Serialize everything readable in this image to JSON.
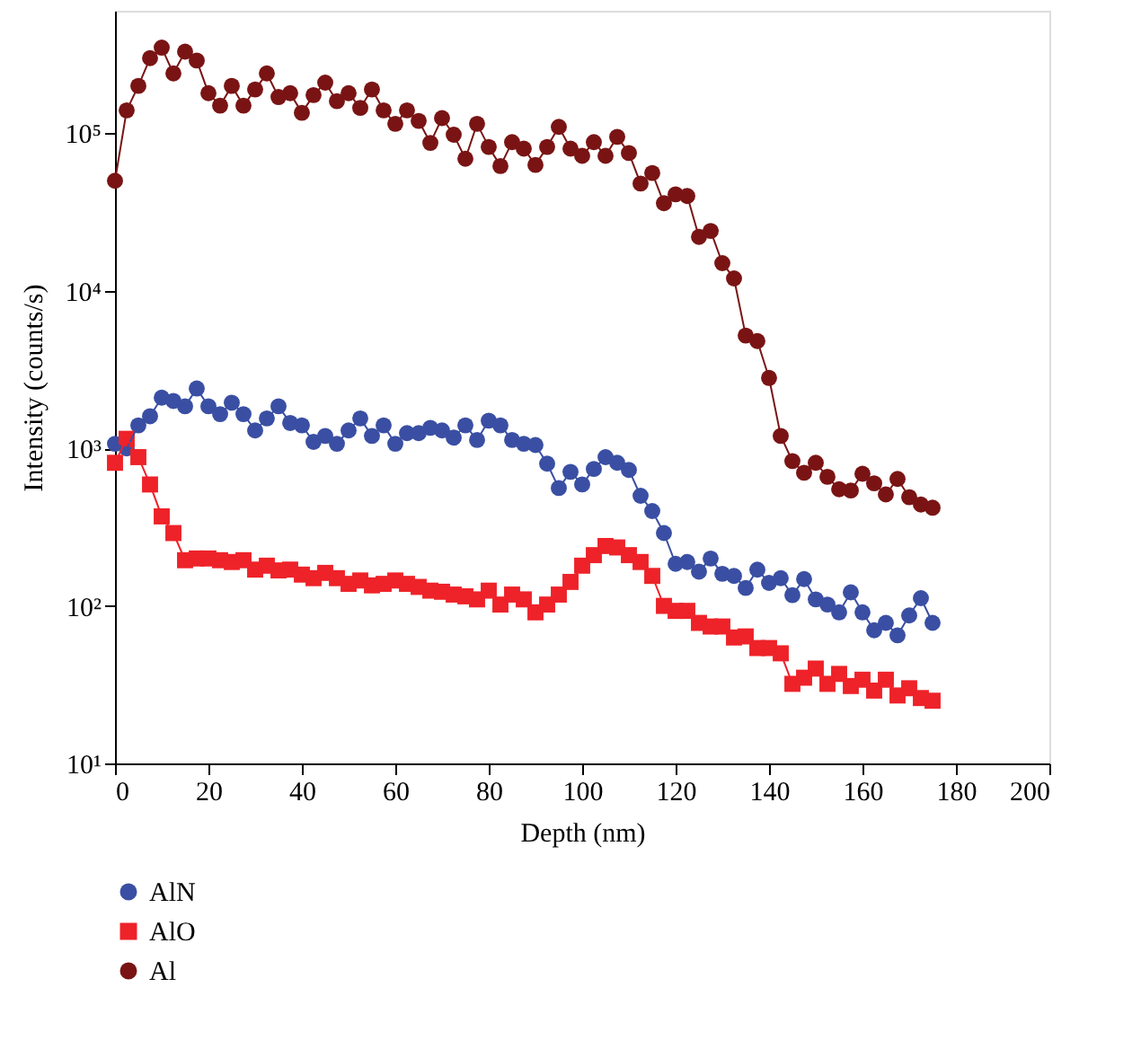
{
  "chart_data": {
    "type": "line",
    "xlabel": "Depth (nm)",
    "ylabel": "Intensity (counts/s)",
    "x": [
      0,
      2.5,
      5,
      7.5,
      10,
      12.5,
      15,
      17.5,
      20,
      22.5,
      25,
      27.5,
      30,
      32.5,
      35,
      37.5,
      40,
      42.5,
      45,
      47.5,
      50,
      52.5,
      55,
      57.5,
      60,
      62.5,
      65,
      67.5,
      70,
      72.5,
      75,
      77.5,
      80,
      82.5,
      85,
      87.5,
      90,
      92.5,
      95,
      97.5,
      100,
      102.5,
      105,
      107.5,
      110,
      112.5,
      115,
      117.5,
      120,
      122.5,
      125,
      127.5,
      130,
      132.5,
      135,
      137.5,
      140,
      142.5,
      145,
      147.5,
      150,
      152.5,
      155,
      157.5,
      160,
      162.5,
      165,
      167.5,
      170,
      172.5,
      175
    ],
    "series": [
      {
        "name": "AlN",
        "color": "#3a4fa3",
        "marker": "circle",
        "values": [
          1070,
          1000,
          1400,
          1600,
          2100,
          2000,
          1850,
          2400,
          1850,
          1650,
          1950,
          1650,
          1300,
          1550,
          1850,
          1450,
          1400,
          1100,
          1200,
          1070,
          1300,
          1550,
          1200,
          1400,
          1070,
          1250,
          1250,
          1350,
          1300,
          1170,
          1400,
          1130,
          1500,
          1400,
          1130,
          1070,
          1050,
          800,
          560,
          710,
          590,
          740,
          880,
          810,
          730,
          500,
          400,
          290,
          185,
          190,
          165,
          200,
          160,
          155,
          130,
          170,
          140,
          150,
          117,
          148,
          110,
          102,
          91,
          122,
          91,
          70,
          78,
          65,
          87,
          112,
          78
        ]
      },
      {
        "name": "AlO",
        "color": "#ee2229",
        "marker": "square",
        "values": [
          810,
          1150,
          880,
          590,
          370,
          290,
          195,
          200,
          200,
          195,
          190,
          195,
          170,
          180,
          168,
          170,
          158,
          150,
          162,
          150,
          138,
          145,
          135,
          138,
          145,
          138,
          132,
          125,
          123,
          118,
          115,
          110,
          125,
          102,
          118,
          110,
          91,
          102,
          118,
          142,
          180,
          210,
          240,
          235,
          210,
          190,
          155,
          100,
          93,
          93,
          78,
          74,
          74,
          63,
          64,
          54,
          54,
          50,
          32,
          35,
          40,
          32,
          37,
          31,
          34,
          29,
          34,
          27,
          30,
          26,
          25
        ]
      },
      {
        "name": "Al",
        "color": "#7a1414",
        "marker": "circle",
        "values": [
          50000,
          140000,
          200000,
          300000,
          350000,
          240000,
          330000,
          290000,
          180000,
          150000,
          200000,
          150000,
          190000,
          240000,
          170000,
          180000,
          135000,
          175000,
          210000,
          160000,
          180000,
          145000,
          190000,
          140000,
          115000,
          140000,
          120000,
          87000,
          125000,
          98000,
          69000,
          115000,
          82000,
          62000,
          88000,
          80000,
          63000,
          82000,
          110000,
          80000,
          72000,
          88000,
          72000,
          95000,
          75000,
          48000,
          56000,
          36000,
          41000,
          40000,
          22000,
          24000,
          15000,
          12000,
          5200,
          4800,
          2800,
          1200,
          830,
          700,
          810,
          660,
          550,
          540,
          690,
          600,
          510,
          640,
          490,
          440,
          420
        ]
      }
    ],
    "log": "y",
    "xlim": [
      0,
      200
    ],
    "xticks": [
      0,
      20,
      40,
      60,
      80,
      100,
      120,
      140,
      160,
      180,
      200
    ],
    "ylim": [
      10,
      600000
    ],
    "yticks": [
      {
        "value": 10,
        "label": "10¹"
      },
      {
        "value": 100,
        "label": "10²"
      },
      {
        "value": 1000,
        "label": "10³"
      },
      {
        "value": 10000,
        "label": "10⁴"
      },
      {
        "value": 100000,
        "label": "10⁵"
      }
    ],
    "grid": false,
    "legend": "bottom left",
    "line_style": "solid"
  }
}
